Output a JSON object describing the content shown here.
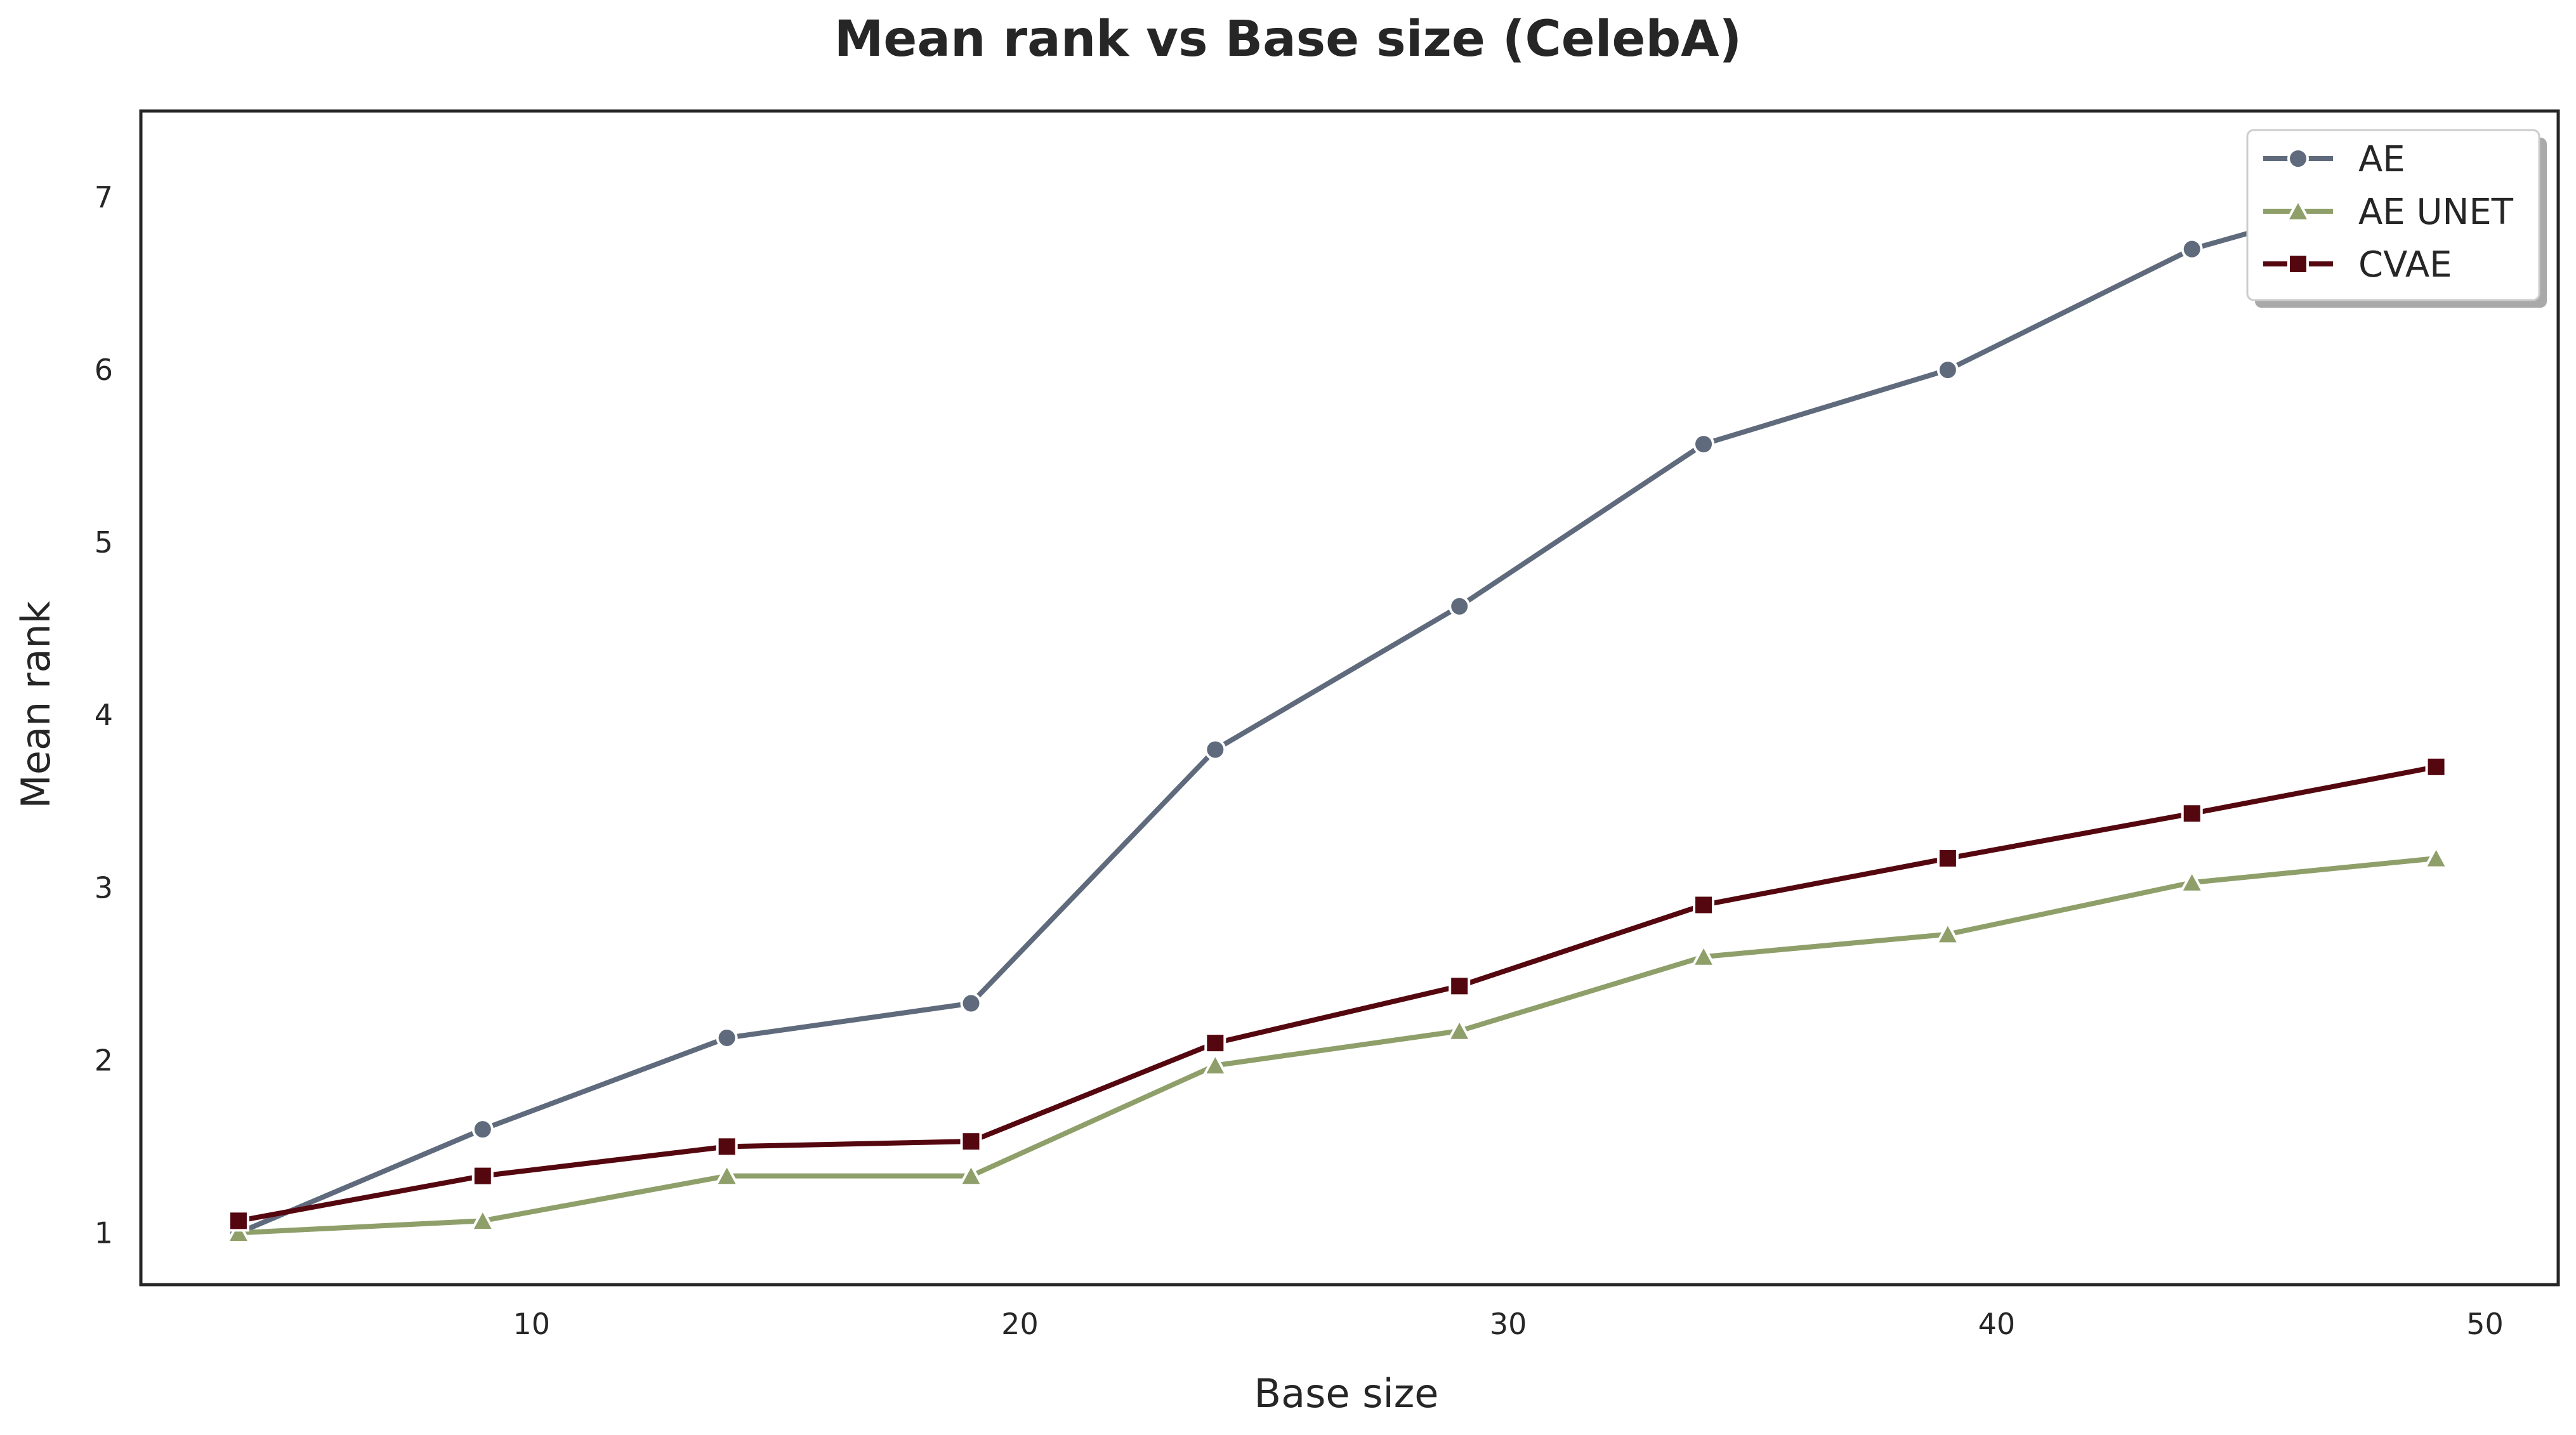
{
  "chart_data": {
    "type": "line",
    "title": "Mean rank vs Base size (CelebA)",
    "xlabel": "Base size",
    "ylabel": "Mean rank",
    "xlim": [
      2,
      51.5
    ],
    "ylim": [
      0.7,
      7.5
    ],
    "xticks": [
      10,
      20,
      30,
      40,
      50
    ],
    "yticks": [
      1,
      2,
      3,
      4,
      5,
      6,
      7
    ],
    "grid": false,
    "legend_position": "top-right",
    "x": [
      4,
      9,
      14,
      19,
      24,
      29,
      34,
      39,
      44,
      49
    ],
    "series": [
      {
        "name": "AE",
        "marker": "circle",
        "color": "#5f6b7c",
        "values": [
          1.0,
          1.6,
          2.13,
          2.33,
          3.8,
          4.63,
          5.57,
          6.0,
          6.7,
          7.1
        ]
      },
      {
        "name": "AE UNET",
        "marker": "triangle",
        "color": "#8f9f6a",
        "values": [
          1.0,
          1.07,
          1.33,
          1.33,
          1.97,
          2.17,
          2.6,
          2.73,
          3.03,
          3.17
        ]
      },
      {
        "name": "CVAE",
        "marker": "square",
        "color": "#55070f",
        "values": [
          1.07,
          1.33,
          1.5,
          1.53,
          2.1,
          2.43,
          2.9,
          3.17,
          3.43,
          3.7
        ]
      }
    ]
  }
}
